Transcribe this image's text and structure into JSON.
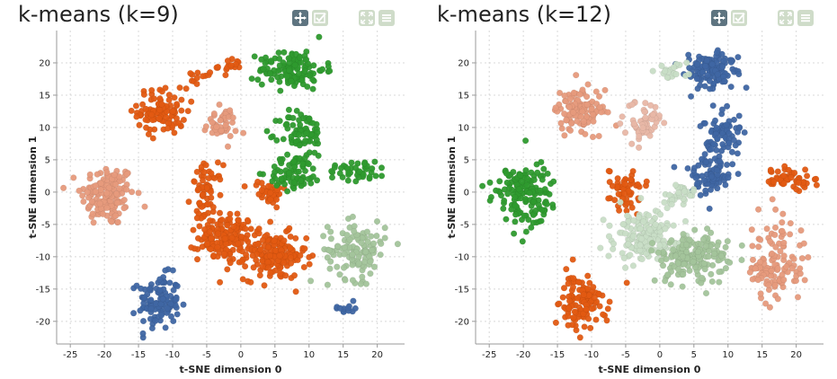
{
  "toolbar_icons": [
    "pan-icon",
    "select-icon",
    "zoom-icon",
    "menu-icon"
  ],
  "colors": {
    "dark_orange": "#e25a12",
    "green": "#2e9a2e",
    "blue": "#3f66a3",
    "light_salmon": "#e69a7c",
    "light_green": "#a3c49b",
    "pale_green": "#c8ddc6",
    "pale_salmon": "#e8b7a6",
    "grid": "#d8d8d8",
    "axis": "#999999"
  },
  "chart_data": [
    {
      "type": "scatter",
      "title": "k-means (k=9)",
      "xlabel": "t-SNE dimension 0",
      "ylabel": "t-SNE dimension 1",
      "xlim": [
        -27,
        24
      ],
      "ylim": [
        -23.5,
        25
      ],
      "xticks": [
        -25,
        -20,
        -15,
        -10,
        -5,
        0,
        5,
        10,
        15,
        20
      ],
      "yticks": [
        -20,
        -15,
        -10,
        -5,
        0,
        5,
        10,
        15,
        20
      ],
      "grid": true,
      "clusters": [
        {
          "cx": -19.5,
          "cy": -0.5,
          "sx": 2.6,
          "sy": 3.2,
          "n": 150,
          "color": "light_salmon"
        },
        {
          "cx": -12.0,
          "cy": -17.0,
          "sx": 2.0,
          "sy": 2.8,
          "n": 110,
          "color": "blue"
        },
        {
          "cx": -11.5,
          "cy": 12.5,
          "sx": 2.4,
          "sy": 2.4,
          "n": 100,
          "color": "dark_orange"
        },
        {
          "cx": -6.5,
          "cy": 17.5,
          "sx": 2.0,
          "sy": 1.0,
          "n": 12,
          "color": "dark_orange"
        },
        {
          "cx": -3.0,
          "cy": 10.5,
          "sx": 1.6,
          "sy": 1.6,
          "n": 45,
          "color": "light_salmon"
        },
        {
          "cx": -1.5,
          "cy": 19.5,
          "sx": 1.2,
          "sy": 0.8,
          "n": 16,
          "color": "dark_orange"
        },
        {
          "cx": -5.0,
          "cy": 0.0,
          "sx": 1.5,
          "sy": 2.8,
          "n": 60,
          "color": "dark_orange"
        },
        {
          "cx": -2.0,
          "cy": -7.0,
          "sx": 2.8,
          "sy": 2.4,
          "n": 160,
          "color": "dark_orange"
        },
        {
          "cx": 5.0,
          "cy": -10.0,
          "sx": 3.0,
          "sy": 2.4,
          "n": 160,
          "color": "dark_orange"
        },
        {
          "cx": 4.0,
          "cy": 0.0,
          "sx": 1.8,
          "sy": 1.2,
          "n": 40,
          "color": "dark_orange"
        },
        {
          "cx": 7.5,
          "cy": 19.0,
          "sx": 3.2,
          "sy": 2.0,
          "n": 120,
          "color": "green"
        },
        {
          "cx": 9.0,
          "cy": 9.0,
          "sx": 2.2,
          "sy": 2.4,
          "n": 75,
          "color": "green"
        },
        {
          "cx": 8.0,
          "cy": 3.0,
          "sx": 2.6,
          "sy": 1.8,
          "n": 75,
          "color": "green"
        },
        {
          "cx": 17.0,
          "cy": 3.5,
          "sx": 3.0,
          "sy": 1.2,
          "n": 40,
          "color": "green"
        },
        {
          "cx": 17.0,
          "cy": -9.0,
          "sx": 2.8,
          "sy": 3.0,
          "n": 120,
          "color": "light_green"
        },
        {
          "cx": 15.5,
          "cy": -18.0,
          "sx": 1.2,
          "sy": 0.6,
          "n": 12,
          "color": "blue"
        }
      ]
    },
    {
      "type": "scatter",
      "title": "k-means (k=12)",
      "xlabel": "t-SNE dimension 0",
      "ylabel": "t-SNE dimension 1",
      "xlim": [
        -27,
        24
      ],
      "ylim": [
        -23.5,
        25
      ],
      "xticks": [
        -25,
        -20,
        -15,
        -10,
        -5,
        0,
        5,
        10,
        15,
        20
      ],
      "yticks": [
        -20,
        -15,
        -10,
        -5,
        0,
        5,
        10,
        15,
        20
      ],
      "grid": true,
      "clusters": [
        {
          "cx": -20.0,
          "cy": -0.5,
          "sx": 2.6,
          "sy": 3.2,
          "n": 150,
          "color": "green"
        },
        {
          "cx": -11.5,
          "cy": -17.0,
          "sx": 2.2,
          "sy": 2.8,
          "n": 120,
          "color": "dark_orange"
        },
        {
          "cx": -12.0,
          "cy": 12.5,
          "sx": 2.6,
          "sy": 2.4,
          "n": 110,
          "color": "light_salmon"
        },
        {
          "cx": -2.5,
          "cy": 11.0,
          "sx": 1.8,
          "sy": 2.0,
          "n": 60,
          "color": "pale_salmon"
        },
        {
          "cx": 7.5,
          "cy": 19.0,
          "sx": 3.2,
          "sy": 2.0,
          "n": 120,
          "color": "blue"
        },
        {
          "cx": 9.0,
          "cy": 9.0,
          "sx": 2.0,
          "sy": 2.4,
          "n": 70,
          "color": "blue"
        },
        {
          "cx": 7.5,
          "cy": 2.5,
          "sx": 2.6,
          "sy": 2.2,
          "n": 80,
          "color": "blue"
        },
        {
          "cx": 18.5,
          "cy": 2.0,
          "sx": 2.6,
          "sy": 1.2,
          "n": 55,
          "color": "dark_orange"
        },
        {
          "cx": -5.0,
          "cy": 0.5,
          "sx": 1.5,
          "sy": 2.4,
          "n": 55,
          "color": "dark_orange"
        },
        {
          "cx": -2.0,
          "cy": -7.0,
          "sx": 3.0,
          "sy": 2.6,
          "n": 170,
          "color": "pale_green"
        },
        {
          "cx": 5.0,
          "cy": -10.0,
          "sx": 3.2,
          "sy": 2.4,
          "n": 170,
          "color": "light_green"
        },
        {
          "cx": 17.0,
          "cy": -11.0,
          "sx": 2.8,
          "sy": 4.0,
          "n": 120,
          "color": "light_salmon"
        },
        {
          "cx": 2.0,
          "cy": 19.0,
          "sx": 1.6,
          "sy": 1.0,
          "n": 20,
          "color": "pale_green"
        },
        {
          "cx": 3.0,
          "cy": -0.5,
          "sx": 1.6,
          "sy": 1.2,
          "n": 30,
          "color": "pale_green"
        }
      ]
    }
  ]
}
